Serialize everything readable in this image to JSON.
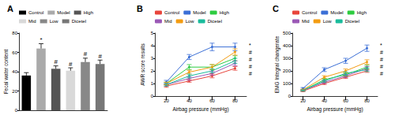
{
  "chart_data": [
    {
      "type": "bar",
      "title": "A",
      "y_label": "Fecal water content",
      "categories": [
        "Control",
        "Model",
        "High",
        "Mid",
        "Low",
        "Dicetel"
      ],
      "values": [
        36,
        64,
        43,
        41,
        50,
        48
      ],
      "errors": [
        3,
        5,
        3,
        3,
        4,
        4
      ],
      "colors": [
        "#000000",
        "#aaaaaa",
        "#555555",
        "#d9d9d9",
        "#888888",
        "#777777"
      ],
      "markers": [
        null,
        "*",
        "#",
        "#",
        "#",
        "#"
      ],
      "ylim": [
        0,
        80
      ],
      "yticks": [
        0,
        20,
        40,
        60,
        80
      ],
      "legend": "top",
      "tick_labels": "y"
    },
    {
      "type": "line",
      "title": "B",
      "x_label": "Airbag pressure (mmHg)",
      "y_label": "AWR score results",
      "categories": [
        "20",
        "40",
        "60",
        "80"
      ],
      "series": [
        {
          "name": "Control",
          "color": "#e8453c",
          "values": [
            0.8,
            1.2,
            1.6,
            2.2
          ],
          "errors": [
            0.1,
            0.1,
            0.15,
            0.15
          ]
        },
        {
          "name": "Model",
          "color": "#3b6fd6",
          "values": [
            1.1,
            3.1,
            3.9,
            3.9
          ],
          "errors": [
            0.15,
            0.2,
            0.3,
            0.3
          ]
        },
        {
          "name": "High",
          "color": "#2ecc40",
          "values": [
            1.0,
            2.3,
            2.3,
            3.0
          ],
          "errors": [
            0.1,
            0.2,
            0.2,
            0.2
          ]
        },
        {
          "name": "Mid",
          "color": "#9b59b6",
          "values": [
            0.9,
            1.4,
            1.8,
            2.6
          ],
          "errors": [
            0.1,
            0.15,
            0.15,
            0.2
          ]
        },
        {
          "name": "Low",
          "color": "#f39c12",
          "values": [
            1.0,
            1.9,
            2.3,
            3.5
          ],
          "errors": [
            0.1,
            0.15,
            0.2,
            0.25
          ]
        },
        {
          "name": "Dicetel",
          "color": "#1abc9c",
          "values": [
            0.9,
            1.6,
            2.0,
            2.8
          ],
          "errors": [
            0.1,
            0.15,
            0.15,
            0.2
          ]
        }
      ],
      "significance": [
        "*",
        "#",
        "#",
        "#",
        "#"
      ],
      "ylim": [
        0,
        5
      ],
      "yticks": [
        0,
        1,
        2,
        3,
        4,
        5
      ],
      "legend": "top",
      "marker": "circle"
    },
    {
      "type": "line",
      "title": "C",
      "x_label": "Airbag pressure (mmHg)",
      "y_label": "EMG Integral changerate",
      "categories": [
        "20",
        "40",
        "60",
        "80"
      ],
      "series": [
        {
          "name": "Control",
          "color": "#e8453c",
          "values": [
            40,
            100,
            150,
            200
          ],
          "errors": [
            5,
            8,
            10,
            12
          ]
        },
        {
          "name": "Model",
          "color": "#3b6fd6",
          "values": [
            60,
            210,
            280,
            380
          ],
          "errors": [
            8,
            15,
            20,
            25
          ]
        },
        {
          "name": "High",
          "color": "#2ecc40",
          "values": [
            45,
            130,
            170,
            230
          ],
          "errors": [
            5,
            10,
            12,
            15
          ]
        },
        {
          "name": "Mid",
          "color": "#9b59b6",
          "values": [
            45,
            110,
            160,
            220
          ],
          "errors": [
            5,
            10,
            12,
            15
          ]
        },
        {
          "name": "Low",
          "color": "#f39c12",
          "values": [
            50,
            150,
            200,
            270
          ],
          "errors": [
            6,
            12,
            15,
            18
          ]
        },
        {
          "name": "Dicetel",
          "color": "#1abc9c",
          "values": [
            45,
            120,
            180,
            210
          ],
          "errors": [
            5,
            10,
            12,
            15
          ]
        }
      ],
      "significance": [
        "*",
        "#",
        "#",
        "#",
        "#"
      ],
      "ylim": [
        0,
        500
      ],
      "yticks": [
        0,
        100,
        200,
        300,
        400,
        500
      ],
      "legend": "top",
      "marker": "circle"
    }
  ]
}
